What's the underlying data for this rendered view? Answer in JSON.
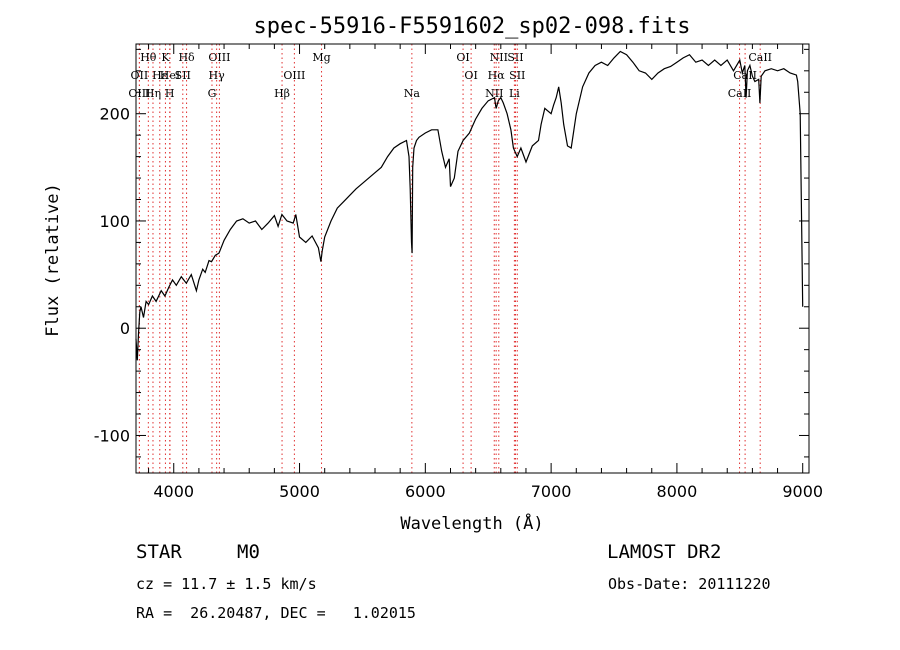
{
  "chart_data": {
    "type": "line",
    "title": "spec-55916-F5591602_sp02-098.fits",
    "xlabel": "Wavelength (Å)",
    "ylabel": "Flux (relative)",
    "xlim": [
      3700,
      9050
    ],
    "ylim": [
      -135,
      265
    ],
    "x_ticks": [
      4000,
      5000,
      6000,
      7000,
      8000,
      9000
    ],
    "y_ticks": [
      -100,
      0,
      100,
      200
    ],
    "grid": false,
    "series": [
      {
        "x": [
          3700,
          3710,
          3720,
          3730,
          3740,
          3760,
          3780,
          3800,
          3830,
          3860,
          3900,
          3930,
          3960,
          3990,
          4020,
          4060,
          4100,
          4140,
          4180,
          4200,
          4230,
          4250,
          4280,
          4300,
          4330,
          4360,
          4400,
          4450,
          4500,
          4550,
          4600,
          4650,
          4700,
          4750,
          4800,
          4830,
          4860,
          4900,
          4950,
          4970,
          5000,
          5050,
          5100,
          5150,
          5170,
          5180,
          5200,
          5250,
          5300,
          5350,
          5400,
          5450,
          5500,
          5550,
          5600,
          5650,
          5700,
          5750,
          5800,
          5850,
          5870,
          5880,
          5890,
          5895,
          5900,
          5910,
          5930,
          5950,
          6000,
          6050,
          6100,
          6130,
          6160,
          6190,
          6200,
          6230,
          6260,
          6300,
          6350,
          6400,
          6450,
          6500,
          6550,
          6563,
          6580,
          6600,
          6620,
          6650,
          6680,
          6700,
          6730,
          6760,
          6800,
          6850,
          6900,
          6920,
          6950,
          7000,
          7020,
          7040,
          7060,
          7080,
          7100,
          7130,
          7160,
          7200,
          7250,
          7300,
          7350,
          7400,
          7450,
          7500,
          7550,
          7600,
          7650,
          7700,
          7750,
          7800,
          7850,
          7900,
          7950,
          8000,
          8050,
          8100,
          8150,
          8200,
          8250,
          8300,
          8350,
          8400,
          8450,
          8500,
          8520,
          8540,
          8550,
          8560,
          8580,
          8600,
          8620,
          8650,
          8660,
          8670,
          8700,
          8750,
          8800,
          8850,
          8900,
          8950,
          8960,
          8980,
          9000
        ],
        "values": [
          -10,
          -30,
          -5,
          15,
          20,
          10,
          25,
          22,
          30,
          25,
          35,
          30,
          38,
          45,
          40,
          48,
          42,
          50,
          35,
          45,
          55,
          52,
          63,
          62,
          68,
          70,
          82,
          92,
          100,
          102,
          98,
          100,
          92,
          98,
          105,
          95,
          106,
          100,
          98,
          106,
          85,
          80,
          86,
          75,
          62,
          72,
          85,
          100,
          112,
          118,
          124,
          130,
          135,
          140,
          145,
          150,
          160,
          168,
          172,
          175,
          160,
          130,
          80,
          70,
          150,
          168,
          175,
          178,
          182,
          185,
          185,
          165,
          150,
          158,
          132,
          140,
          165,
          175,
          182,
          195,
          205,
          212,
          215,
          205,
          212,
          215,
          210,
          200,
          185,
          168,
          160,
          168,
          155,
          170,
          175,
          190,
          205,
          200,
          208,
          215,
          225,
          210,
          190,
          170,
          168,
          200,
          225,
          238,
          245,
          248,
          245,
          252,
          258,
          255,
          248,
          240,
          238,
          232,
          238,
          242,
          244,
          248,
          252,
          255,
          248,
          250,
          245,
          250,
          245,
          250,
          240,
          250,
          238,
          245,
          215,
          240,
          245,
          235,
          230,
          232,
          210,
          235,
          240,
          242,
          240,
          242,
          238,
          236,
          230,
          200,
          20
        ]
      }
    ],
    "line_markers": [
      {
        "label": "Hθ",
        "x": 3798,
        "row": 1,
        "dx": 0
      },
      {
        "label": "K",
        "x": 3934,
        "row": 1,
        "dx": 0
      },
      {
        "label": "Hδ",
        "x": 4102,
        "row": 1,
        "dx": 0
      },
      {
        "label": "OIII",
        "x": 4363,
        "row": 1,
        "dx": 0
      },
      {
        "label": "Mg",
        "x": 5175,
        "row": 1,
        "dx": 0
      },
      {
        "label": "OI",
        "x": 6300,
        "row": 1,
        "dx": 0
      },
      {
        "label": "NII",
        "x": 6584,
        "row": 1,
        "dx": 0
      },
      {
        "label": "SII",
        "x": 6717,
        "row": 1,
        "dx": 0
      },
      {
        "label": "CaII",
        "x": 8662,
        "row": 1,
        "dx": 0
      },
      {
        "label": "OII",
        "x": 3727,
        "row": 2,
        "dx": 0
      },
      {
        "label": "Hε",
        "x": 3889,
        "row": 2,
        "dx": 0
      },
      {
        "label": "HeI",
        "x": 3970,
        "row": 2,
        "dx": 0
      },
      {
        "label": "SII",
        "x": 4072,
        "row": 2,
        "dx": 0
      },
      {
        "label": "Hγ",
        "x": 4341,
        "row": 2,
        "dx": 0
      },
      {
        "label": "OIII",
        "x": 4959,
        "row": 2,
        "dx": 0
      },
      {
        "label": "OI",
        "x": 6364,
        "row": 2,
        "dx": 0
      },
      {
        "label": "Hα",
        "x": 6563,
        "row": 2,
        "dx": 0
      },
      {
        "label": "SII",
        "x": 6731,
        "row": 2,
        "dx": 0
      },
      {
        "label": "CaII",
        "x": 8542,
        "row": 2,
        "dx": 0
      },
      {
        "label": "OIII",
        "x": 3727,
        "row": 3,
        "dx": 0
      },
      {
        "label": "Hη",
        "x": 3835,
        "row": 3,
        "dx": 0
      },
      {
        "label": "H",
        "x": 3968,
        "row": 3,
        "dx": 0
      },
      {
        "label": "G",
        "x": 4304,
        "row": 3,
        "dx": 0
      },
      {
        "label": "Hβ",
        "x": 4861,
        "row": 3,
        "dx": 0
      },
      {
        "label": "Na",
        "x": 5893,
        "row": 3,
        "dx": 0
      },
      {
        "label": "NII",
        "x": 6548,
        "row": 3,
        "dx": 0
      },
      {
        "label": "Li",
        "x": 6708,
        "row": 3,
        "dx": 0
      },
      {
        "label": "CaII",
        "x": 8498,
        "row": 3,
        "dx": 0
      }
    ]
  },
  "info": {
    "class_label": "STAR",
    "subclass_label": "M0",
    "survey_label": "LAMOST DR2",
    "redshift_text": "cz = 11.7 ± 1.5 km/s",
    "obs_date_text": "Obs-Date: 20111220",
    "coords_text": "RA =  26.20487, DEC =   1.02015"
  }
}
